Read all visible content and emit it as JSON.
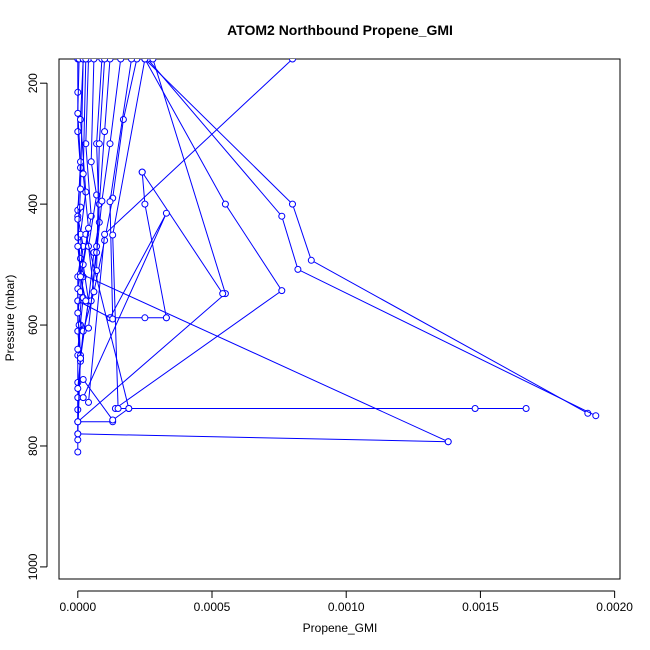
{
  "chart_data": {
    "type": "line",
    "title": "ATOM2 Northbound Propene_GMI",
    "xlabel": "Propene_GMI",
    "ylabel": "Pressure (mbar)",
    "xlim": [
      -7e-05,
      0.00202
    ],
    "ylim": [
      1020,
      160
    ],
    "y_reversed": true,
    "grid": false,
    "legend": "none",
    "x_ticks": [
      "0.0000",
      "0.0005",
      "0.0010",
      "0.0015",
      "0.0020"
    ],
    "x_tick_values": [
      0,
      0.0005,
      0.001,
      0.0015,
      0.002
    ],
    "y_ticks": [
      "200",
      "400",
      "600",
      "800",
      "1000"
    ],
    "y_tick_values": [
      200,
      400,
      600,
      800,
      1000
    ],
    "colors": {
      "series": "#0000ff",
      "axes": "#000000",
      "background": "#ffffff"
    },
    "series": [
      {
        "x": [
          0.0,
          0.0,
          0.0,
          1e-05,
          0.0,
          0.0,
          1e-05,
          0.0,
          0.0,
          1e-05,
          0.0,
          0.0,
          0.0,
          0.0
        ],
        "y": [
          160,
          215,
          280,
          340,
          410,
          455,
          490,
          520,
          560,
          600,
          650,
          695,
          740,
          810
        ]
      },
      {
        "x": [
          5e-06,
          0.0,
          1e-05,
          0.0,
          2e-05,
          0.0,
          0.0,
          1e-05,
          0.0,
          0.0
        ],
        "y": [
          160,
          250,
          330,
          420,
          470,
          540,
          610,
          660,
          720,
          790
        ]
      },
      {
        "x": [
          2e-05,
          1e-05,
          3e-05,
          1e-05,
          2e-05,
          5e-06,
          1e-05,
          0.0
        ],
        "y": [
          160,
          260,
          380,
          450,
          520,
          600,
          655,
          760
        ]
      },
      {
        "x": [
          4e-05,
          3e-05,
          5e-05,
          2e-05,
          4e-05,
          1e-05,
          0.0
        ],
        "y": [
          160,
          300,
          420,
          500,
          560,
          650,
          780
        ]
      },
      {
        "x": [
          6e-05,
          5e-05,
          7e-05,
          4e-05,
          6e-05,
          2e-05,
          1e-05
        ],
        "y": [
          160,
          330,
          385,
          470,
          545,
          610,
          655
        ]
      },
      {
        "x": [
          9e-05,
          7e-05,
          8e-05,
          6e-05,
          4e-05,
          1e-05
        ],
        "y": [
          160,
          300,
          430,
          480,
          560,
          655
        ]
      },
      {
        "x": [
          0.00012,
          0.0001,
          8e-05,
          7e-05,
          5e-05
        ],
        "y": [
          160,
          280,
          400,
          470,
          560
        ]
      },
      {
        "x": [
          0.00016,
          0.00012,
          9e-05,
          7e-05,
          4e-05
        ],
        "y": [
          160,
          300,
          395,
          480,
          605
        ]
      },
      {
        "x": [
          0.00022,
          0.00017,
          0.00013,
          0.0001,
          6e-05
        ],
        "y": [
          160,
          260,
          390,
          460,
          545
        ]
      },
      {
        "x": [
          0.0001,
          8e-05,
          7e-05
        ],
        "y": [
          160,
          300,
          510
        ]
      },
      {
        "x": [
          0.0008,
          0.0001,
          4e-05
        ],
        "y": [
          160,
          450,
          728
        ]
      },
      {
        "x": [
          0.00025,
          0.0008,
          0.00087,
          0.0019
        ],
        "y": [
          160,
          400,
          493,
          746
        ]
      },
      {
        "x": [
          0.00026,
          0.00076,
          0.00082,
          0.00193
        ],
        "y": [
          160,
          420,
          508,
          750
        ]
      },
      {
        "x": [
          0.00025,
          0.00055,
          0.00076,
          0.00014
        ],
        "y": [
          160,
          400,
          543,
          738
        ]
      },
      {
        "x": [
          0.00028,
          0.00055,
          0.0
        ],
        "y": [
          160,
          548,
          760
        ]
      },
      {
        "x": [
          0.00024,
          0.00025,
          0.00033
        ],
        "y": [
          347,
          400,
          588
        ]
      },
      {
        "x": [
          0.00024,
          0.00054
        ],
        "y": [
          347,
          548
        ]
      },
      {
        "x": [
          0.00012,
          0.00033,
          2e-05
        ],
        "y": [
          588,
          415,
          720
        ]
      },
      {
        "x": [
          0.00012,
          0.00025,
          0.00033
        ],
        "y": [
          588,
          588,
          588
        ]
      },
      {
        "x": [
          0.0002,
          0.00012,
          0.00013,
          0.0
        ],
        "y": [
          160,
          396,
          590,
          560
        ]
      },
      {
        "x": [
          0.00025,
          0.00013,
          0.00015,
          0.00148,
          0.00167
        ],
        "y": [
          160,
          451,
          738,
          738,
          738
        ]
      },
      {
        "x": [
          0.0,
          0.00138
        ],
        "y": [
          780,
          793
        ]
      },
      {
        "x": [
          1e-05,
          0.00138
        ],
        "y": [
          515,
          793
        ]
      },
      {
        "x": [
          0.0,
          0.00013
        ],
        "y": [
          760,
          760
        ]
      },
      {
        "x": [
          2e-05,
          0.00013,
          0.00019
        ],
        "y": [
          690,
          757,
          738
        ]
      },
      {
        "x": [
          3e-05,
          0.00019
        ],
        "y": [
          450,
          738
        ]
      },
      {
        "x": [
          1e-05,
          0.0,
          1e-05,
          0.0,
          1e-05,
          0.0
        ],
        "y": [
          405,
          425,
          545,
          580,
          655,
          705
        ]
      },
      {
        "x": [
          2e-05,
          1e-05,
          0.0,
          2e-05,
          0.0
        ],
        "y": [
          160,
          375,
          470,
          555,
          640
        ]
      },
      {
        "x": [
          3e-05,
          2e-05,
          4e-05,
          1e-05,
          3e-05
        ],
        "y": [
          160,
          350,
          440,
          520,
          560
        ]
      }
    ]
  }
}
